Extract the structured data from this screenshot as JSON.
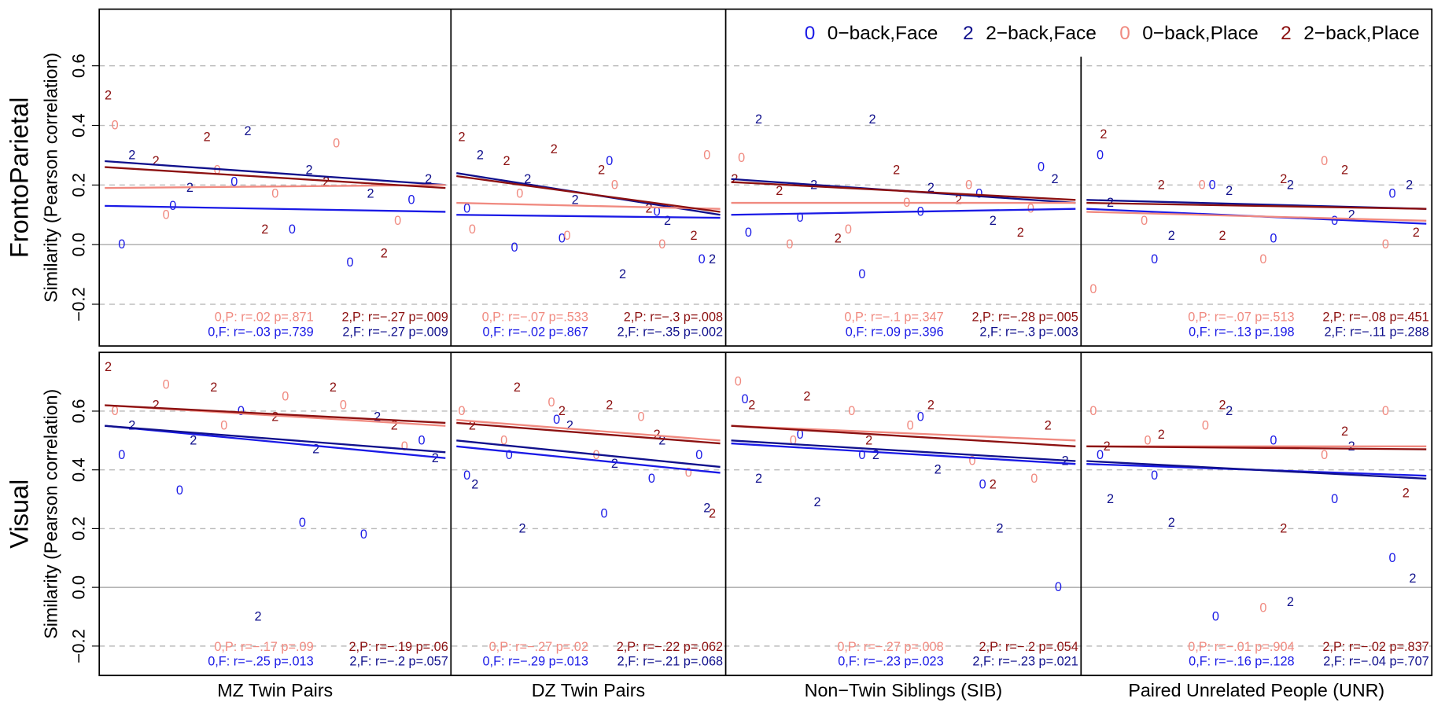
{
  "chart_data": {
    "type": "scatter",
    "legend_position": "top-right",
    "grid": true,
    "xlim": [
      0,
      1
    ],
    "series": [
      {
        "name": "0−back,Face",
        "marker": "0",
        "color": "#1a1ae6"
      },
      {
        "name": "2−back,Face",
        "marker": "2",
        "color": "#10108c"
      },
      {
        "name": "0−back,Place",
        "marker": "0",
        "color": "#f08a80"
      },
      {
        "name": "2−back,Place",
        "marker": "2",
        "color": "#8c1010"
      }
    ],
    "columns": [
      "MZ Twin Pairs",
      "DZ Twin Pairs",
      "Non−Twin Siblings (SIB)",
      "Paired Unrelated People (UNR)"
    ],
    "rows": [
      {
        "label": "FrontoParietal",
        "ylabel": "Similarity (Pearson correlation)",
        "ylim": [
          -0.34,
          0.79
        ],
        "yticks": [
          {
            "value": -0.2,
            "label": "−0.2"
          },
          {
            "value": 0,
            "label": "0.0"
          },
          0.2,
          0.4,
          0.6
        ],
        "panels": [
          {
            "series": [
              {
                "x": [
                  0.05,
                  0.2,
                  0.38,
                  0.55,
                  0.72,
                  0.9
                ],
                "values": [
                  0.0,
                  0.13,
                  0.21,
                  0.05,
                  -0.06,
                  0.15
                ],
                "trend": [
                  0.13,
                  0.11
                ],
                "stat": "0,F: r=−.03 p=.739"
              },
              {
                "x": [
                  0.08,
                  0.25,
                  0.42,
                  0.6,
                  0.78,
                  0.95
                ],
                "values": [
                  0.3,
                  0.19,
                  0.38,
                  0.25,
                  0.17,
                  0.22
                ],
                "trend": [
                  0.28,
                  0.2
                ],
                "stat": "2,F: r=−.27 p=.009"
              },
              {
                "x": [
                  0.03,
                  0.18,
                  0.33,
                  0.5,
                  0.68,
                  0.86
                ],
                "values": [
                  0.4,
                  0.1,
                  0.25,
                  0.17,
                  0.34,
                  0.08
                ],
                "trend": [
                  0.19,
                  0.2
                ],
                "stat": "0,P: r=.02 p=.871"
              },
              {
                "x": [
                  0.01,
                  0.15,
                  0.3,
                  0.47,
                  0.65,
                  0.82
                ],
                "values": [
                  0.5,
                  0.28,
                  0.36,
                  0.05,
                  0.21,
                  -0.03
                ],
                "trend": [
                  0.26,
                  0.19
                ],
                "stat": "2,P: r=−.27 p=.009"
              }
            ]
          },
          {
            "series": [
              {
                "x": [
                  0.04,
                  0.22,
                  0.4,
                  0.58,
                  0.76,
                  0.93
                ],
                "values": [
                  0.12,
                  -0.01,
                  0.02,
                  0.28,
                  0.11,
                  -0.05
                ],
                "trend": [
                  0.1,
                  0.09
                ],
                "stat": "0,F: r=−.02 p=.867"
              },
              {
                "x": [
                  0.09,
                  0.27,
                  0.45,
                  0.63,
                  0.8,
                  0.97
                ],
                "values": [
                  0.3,
                  0.22,
                  0.15,
                  -0.1,
                  0.08,
                  -0.05
                ],
                "trend": [
                  0.24,
                  0.1
                ],
                "stat": "2,F: r=−.35 p=.002"
              },
              {
                "x": [
                  0.06,
                  0.24,
                  0.42,
                  0.6,
                  0.78,
                  0.95
                ],
                "values": [
                  0.05,
                  0.17,
                  0.03,
                  0.2,
                  0.0,
                  0.3
                ],
                "trend": [
                  0.14,
                  0.12
                ],
                "stat": "0,P: r=−.07 p=.533"
              },
              {
                "x": [
                  0.02,
                  0.19,
                  0.37,
                  0.55,
                  0.73,
                  0.9
                ],
                "values": [
                  0.36,
                  0.28,
                  0.32,
                  0.25,
                  0.12,
                  0.03
                ],
                "trend": [
                  0.23,
                  0.11
                ],
                "stat": "2,P: r=−.3 p=.008"
              }
            ]
          },
          {
            "series": [
              {
                "x": [
                  0.05,
                  0.2,
                  0.38,
                  0.55,
                  0.72,
                  0.9
                ],
                "values": [
                  0.04,
                  0.09,
                  -0.1,
                  0.11,
                  0.17,
                  0.26
                ],
                "trend": [
                  0.1,
                  0.12
                ],
                "stat": "0,F: r=.09 p=.396"
              },
              {
                "x": [
                  0.08,
                  0.24,
                  0.41,
                  0.58,
                  0.76,
                  0.94
                ],
                "values": [
                  0.42,
                  0.2,
                  0.42,
                  0.19,
                  0.08,
                  0.22
                ],
                "trend": [
                  0.22,
                  0.14
                ],
                "stat": "2,F: r=−.3 p=.003"
              },
              {
                "x": [
                  0.03,
                  0.17,
                  0.34,
                  0.51,
                  0.69,
                  0.87
                ],
                "values": [
                  0.29,
                  0.0,
                  0.05,
                  0.14,
                  0.2,
                  0.12
                ],
                "trend": [
                  0.14,
                  0.14
                ],
                "stat": "0,P: r=−.1 p=.347"
              },
              {
                "x": [
                  0.01,
                  0.14,
                  0.31,
                  0.48,
                  0.66,
                  0.84
                ],
                "values": [
                  0.22,
                  0.18,
                  0.02,
                  0.25,
                  0.15,
                  0.04
                ],
                "trend": [
                  0.21,
                  0.15
                ],
                "stat": "2,P: r=−.28 p=.005"
              }
            ]
          },
          {
            "series": [
              {
                "x": [
                  0.04,
                  0.2,
                  0.37,
                  0.55,
                  0.73,
                  0.9
                ],
                "values": [
                  0.3,
                  -0.05,
                  0.2,
                  0.02,
                  0.08,
                  0.17
                ],
                "trend": [
                  0.12,
                  0.07
                ],
                "stat": "0,F: r=−.13 p=.198"
              },
              {
                "x": [
                  0.07,
                  0.25,
                  0.42,
                  0.6,
                  0.78,
                  0.95
                ],
                "values": [
                  0.14,
                  0.03,
                  0.18,
                  0.2,
                  0.1,
                  0.2
                ],
                "trend": [
                  0.15,
                  0.12
                ],
                "stat": "2,F: r=−.11 p=.288"
              },
              {
                "x": [
                  0.02,
                  0.17,
                  0.34,
                  0.52,
                  0.7,
                  0.88
                ],
                "values": [
                  -0.15,
                  0.08,
                  0.2,
                  -0.05,
                  0.28,
                  0.0
                ],
                "trend": [
                  0.11,
                  0.08
                ],
                "stat": "0,P: r=−.07 p=.513"
              },
              {
                "x": [
                  0.05,
                  0.22,
                  0.4,
                  0.58,
                  0.76,
                  0.97
                ],
                "values": [
                  0.37,
                  0.2,
                  0.03,
                  0.22,
                  0.25,
                  0.04
                ],
                "trend": [
                  0.14,
                  0.12
                ],
                "stat": "2,P: r=−.08 p=.451"
              }
            ]
          }
        ]
      },
      {
        "label": "Visual",
        "ylabel": "Similarity (Pearson correlation)",
        "ylim": [
          -0.3,
          0.8
        ],
        "yticks": [
          {
            "value": -0.2,
            "label": "−0.2"
          },
          {
            "value": 0,
            "label": "0.0"
          },
          0.2,
          0.4,
          0.6
        ],
        "panels": [
          {
            "series": [
              {
                "x": [
                  0.05,
                  0.22,
                  0.4,
                  0.58,
                  0.76,
                  0.93
                ],
                "values": [
                  0.45,
                  0.33,
                  0.6,
                  0.22,
                  0.18,
                  0.5
                ],
                "trend": [
                  0.55,
                  0.44
                ],
                "stat": "0,F: r=−.25 p=.013"
              },
              {
                "x": [
                  0.08,
                  0.26,
                  0.45,
                  0.62,
                  0.8,
                  0.97
                ],
                "values": [
                  0.55,
                  0.5,
                  -0.1,
                  0.47,
                  0.58,
                  0.44
                ],
                "trend": [
                  0.55,
                  0.46
                ],
                "stat": "2,F: r=−.2 p=.057"
              },
              {
                "x": [
                  0.03,
                  0.18,
                  0.35,
                  0.53,
                  0.7,
                  0.88
                ],
                "values": [
                  0.6,
                  0.69,
                  0.55,
                  0.65,
                  0.62,
                  0.48
                ],
                "trend": [
                  0.62,
                  0.55
                ],
                "stat": "0,P: r=−.17 p=.09"
              },
              {
                "x": [
                  0.01,
                  0.15,
                  0.32,
                  0.5,
                  0.67,
                  0.85
                ],
                "values": [
                  0.75,
                  0.62,
                  0.68,
                  0.58,
                  0.68,
                  0.55
                ],
                "trend": [
                  0.62,
                  0.56
                ],
                "stat": "2,P: r=−.19 p=.06"
              }
            ]
          },
          {
            "series": [
              {
                "x": [
                  0.04,
                  0.2,
                  0.38,
                  0.56,
                  0.74,
                  0.92
                ],
                "values": [
                  0.38,
                  0.45,
                  0.57,
                  0.25,
                  0.37,
                  0.45
                ],
                "trend": [
                  0.48,
                  0.39
                ],
                "stat": "0,F: r=−.29 p=.013"
              },
              {
                "x": [
                  0.07,
                  0.25,
                  0.43,
                  0.6,
                  0.78,
                  0.95
                ],
                "values": [
                  0.35,
                  0.2,
                  0.55,
                  0.42,
                  0.5,
                  0.27
                ],
                "trend": [
                  0.5,
                  0.41
                ],
                "stat": "2,F: r=−.21 p=.068"
              },
              {
                "x": [
                  0.02,
                  0.18,
                  0.36,
                  0.53,
                  0.7,
                  0.88
                ],
                "values": [
                  0.6,
                  0.5,
                  0.63,
                  0.45,
                  0.58,
                  0.39
                ],
                "trend": [
                  0.57,
                  0.5
                ],
                "stat": "0,P: r=−.27 p=.02"
              },
              {
                "x": [
                  0.06,
                  0.23,
                  0.4,
                  0.58,
                  0.76,
                  0.97
                ],
                "values": [
                  0.55,
                  0.68,
                  0.6,
                  0.62,
                  0.52,
                  0.25
                ],
                "trend": [
                  0.56,
                  0.49
                ],
                "stat": "2,P: r=−.22 p=.062"
              }
            ]
          },
          {
            "series": [
              {
                "x": [
                  0.04,
                  0.2,
                  0.38,
                  0.55,
                  0.73,
                  0.95
                ],
                "values": [
                  0.64,
                  0.52,
                  0.45,
                  0.58,
                  0.35,
                  0.0
                ],
                "trend": [
                  0.49,
                  0.42
                ],
                "stat": "0,F: r=−.23 p=.023"
              },
              {
                "x": [
                  0.08,
                  0.25,
                  0.42,
                  0.6,
                  0.78,
                  0.97
                ],
                "values": [
                  0.37,
                  0.29,
                  0.45,
                  0.4,
                  0.2,
                  0.43
                ],
                "trend": [
                  0.5,
                  0.43
                ],
                "stat": "2,F: r=−.23 p=.021"
              },
              {
                "x": [
                  0.02,
                  0.18,
                  0.35,
                  0.52,
                  0.7,
                  0.88
                ],
                "values": [
                  0.7,
                  0.5,
                  0.6,
                  0.55,
                  0.43,
                  0.37
                ],
                "trend": [
                  0.55,
                  0.5
                ],
                "stat": "0,P: r=−.27 p=.008"
              },
              {
                "x": [
                  0.06,
                  0.22,
                  0.4,
                  0.58,
                  0.76,
                  0.92
                ],
                "values": [
                  0.62,
                  0.65,
                  0.5,
                  0.62,
                  0.35,
                  0.55
                ],
                "trend": [
                  0.55,
                  0.48
                ],
                "stat": "2,P: r=−.2 p=.054"
              }
            ]
          },
          {
            "series": [
              {
                "x": [
                  0.04,
                  0.2,
                  0.38,
                  0.55,
                  0.73,
                  0.9
                ],
                "values": [
                  0.45,
                  0.38,
                  -0.1,
                  0.5,
                  0.3,
                  0.1
                ],
                "trend": [
                  0.42,
                  0.38
                ],
                "stat": "0,F: r=−.16 p=.128"
              },
              {
                "x": [
                  0.07,
                  0.25,
                  0.42,
                  0.6,
                  0.78,
                  0.96
                ],
                "values": [
                  0.3,
                  0.22,
                  0.6,
                  -0.05,
                  0.48,
                  0.03
                ],
                "trend": [
                  0.43,
                  0.37
                ],
                "stat": "2,F: r=−.04 p=.707"
              },
              {
                "x": [
                  0.02,
                  0.18,
                  0.35,
                  0.52,
                  0.7,
                  0.88
                ],
                "values": [
                  0.6,
                  0.5,
                  0.55,
                  -0.07,
                  0.45,
                  0.6
                ],
                "trend": [
                  0.48,
                  0.48
                ],
                "stat": "0,P: r=−.01 p=.904"
              },
              {
                "x": [
                  0.06,
                  0.22,
                  0.4,
                  0.58,
                  0.76,
                  0.94
                ],
                "values": [
                  0.48,
                  0.52,
                  0.62,
                  0.2,
                  0.53,
                  0.32
                ],
                "trend": [
                  0.48,
                  0.47
                ],
                "stat": "2,P: r=−.02 p=.837"
              }
            ]
          }
        ]
      }
    ]
  }
}
